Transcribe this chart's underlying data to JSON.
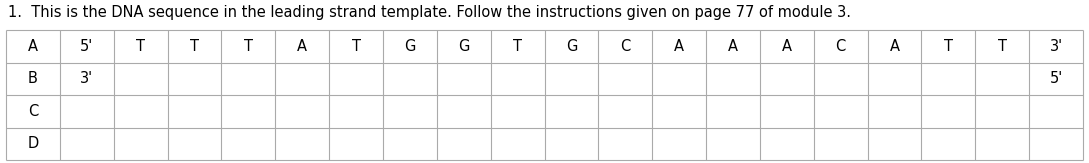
{
  "title": "1.  This is the DNA sequence in the leading strand template. Follow the instructions given on page 77 of module 3.",
  "row_A_data": [
    "5'",
    "T",
    "T",
    "T",
    "A",
    "T",
    "G",
    "G",
    "T",
    "G",
    "C",
    "A",
    "A",
    "A",
    "C",
    "A",
    "T",
    "T",
    "3'"
  ],
  "row_B_data": [
    "3'",
    "",
    "",
    "",
    "",
    "",
    "",
    "",
    "",
    "",
    "",
    "",
    "",
    "",
    "",
    "",
    "",
    "",
    "5'"
  ],
  "row_C_data": [
    "",
    "",
    "",
    "",
    "",
    "",
    "",
    "",
    "",
    "",
    "",
    "",
    "",
    "",
    "",
    "",
    "",
    "",
    ""
  ],
  "row_D_data": [
    "",
    "",
    "",
    "",
    "",
    "",
    "",
    "",
    "",
    "",
    "",
    "",
    "",
    "",
    "",
    "",
    "",
    "",
    ""
  ],
  "bg_color": "#ffffff",
  "line_color": "#aaaaaa",
  "text_color": "#000000",
  "title_fontsize": 10.5,
  "cell_fontsize": 10.5
}
